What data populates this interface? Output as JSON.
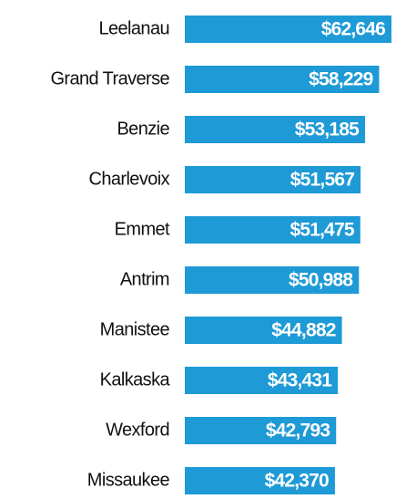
{
  "chart_data": {
    "type": "bar",
    "orientation": "horizontal",
    "categories": [
      "Leelanau",
      "Grand Traverse",
      "Benzie",
      "Charlevoix",
      "Emmet",
      "Antrim",
      "Manistee",
      "Kalkaska",
      "Wexford",
      "Missaukee"
    ],
    "values": [
      62646,
      58229,
      53185,
      51567,
      51475,
      50988,
      44882,
      43431,
      42793,
      42370
    ],
    "value_labels": [
      "$62,646",
      "$58,229",
      "$53,185",
      "$51,567",
      "$51,475",
      "$50,988",
      "$44,882",
      "$43,431",
      "$42,793",
      "$42,370"
    ],
    "color": "#1e9ad6",
    "xlim": [
      -11500,
      62646
    ]
  }
}
